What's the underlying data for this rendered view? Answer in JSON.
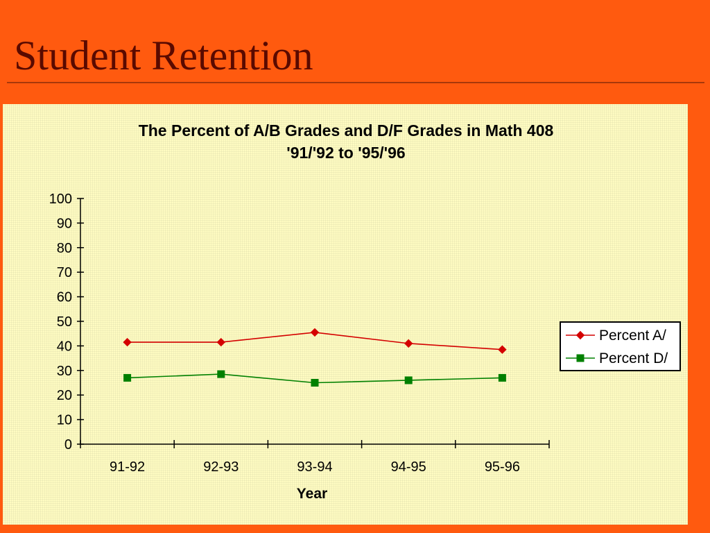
{
  "slide": {
    "title": "Student Retention"
  },
  "chart_data": {
    "type": "line",
    "title": "The Percent of A/B Grades and D/F Grades in Math 408",
    "subtitle": "'91/'92 to '95/'96",
    "xlabel": "Year",
    "ylabel": "",
    "categories": [
      "91-92",
      "92-93",
      "93-94",
      "94-95",
      "95-96"
    ],
    "ylim": [
      0,
      100
    ],
    "yticks": [
      0,
      10,
      20,
      30,
      40,
      50,
      60,
      70,
      80,
      90,
      100
    ],
    "grid": false,
    "legend_position": "right",
    "series": [
      {
        "name": "Percent A/",
        "color": "#d40000",
        "marker": "diamond",
        "values": [
          41.5,
          41.5,
          45.5,
          41,
          38.5
        ]
      },
      {
        "name": "Percent D/",
        "color": "#008000",
        "marker": "square",
        "values": [
          27,
          28.5,
          25,
          26,
          27
        ]
      }
    ]
  }
}
